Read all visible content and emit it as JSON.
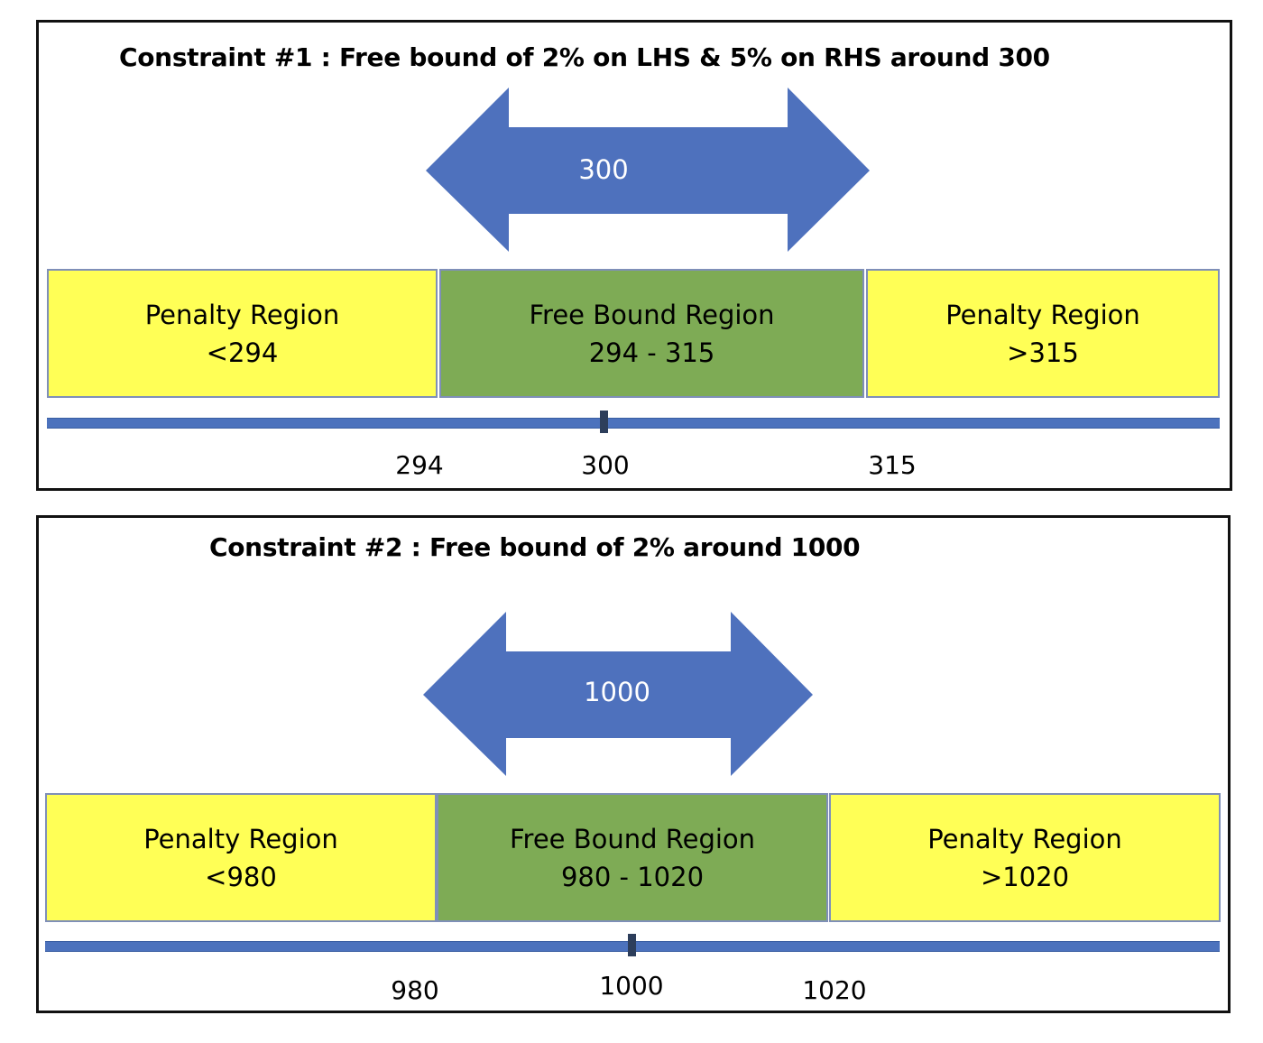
{
  "colors": {
    "arrow": "#4e71bd",
    "penalty": "#ffff56",
    "free": "#7eab55",
    "axis": "#4c72bd",
    "tick": "#2d3e5b"
  },
  "constraints": [
    {
      "title": "Constraint #1 : Free bound of 2% on LHS  & 5% on RHS around 300",
      "arrow_value": "300",
      "regions": [
        {
          "label": "Penalty Region",
          "range": "<294"
        },
        {
          "label": "Free Bound Region",
          "range": "294 - 315"
        },
        {
          "label": "Penalty Region",
          "range": ">315"
        }
      ],
      "axis_labels": [
        "294",
        "300",
        "315"
      ]
    },
    {
      "title": "Constraint #2 :  Free bound of 2% around 1000",
      "arrow_value": "1000",
      "regions": [
        {
          "label": "Penalty Region",
          "range": "<980"
        },
        {
          "label": "Free Bound Region",
          "range": "980 - 1020"
        },
        {
          "label": "Penalty Region",
          "range": ">1020"
        }
      ],
      "axis_labels": [
        "980",
        "1000",
        "1020"
      ]
    }
  ]
}
